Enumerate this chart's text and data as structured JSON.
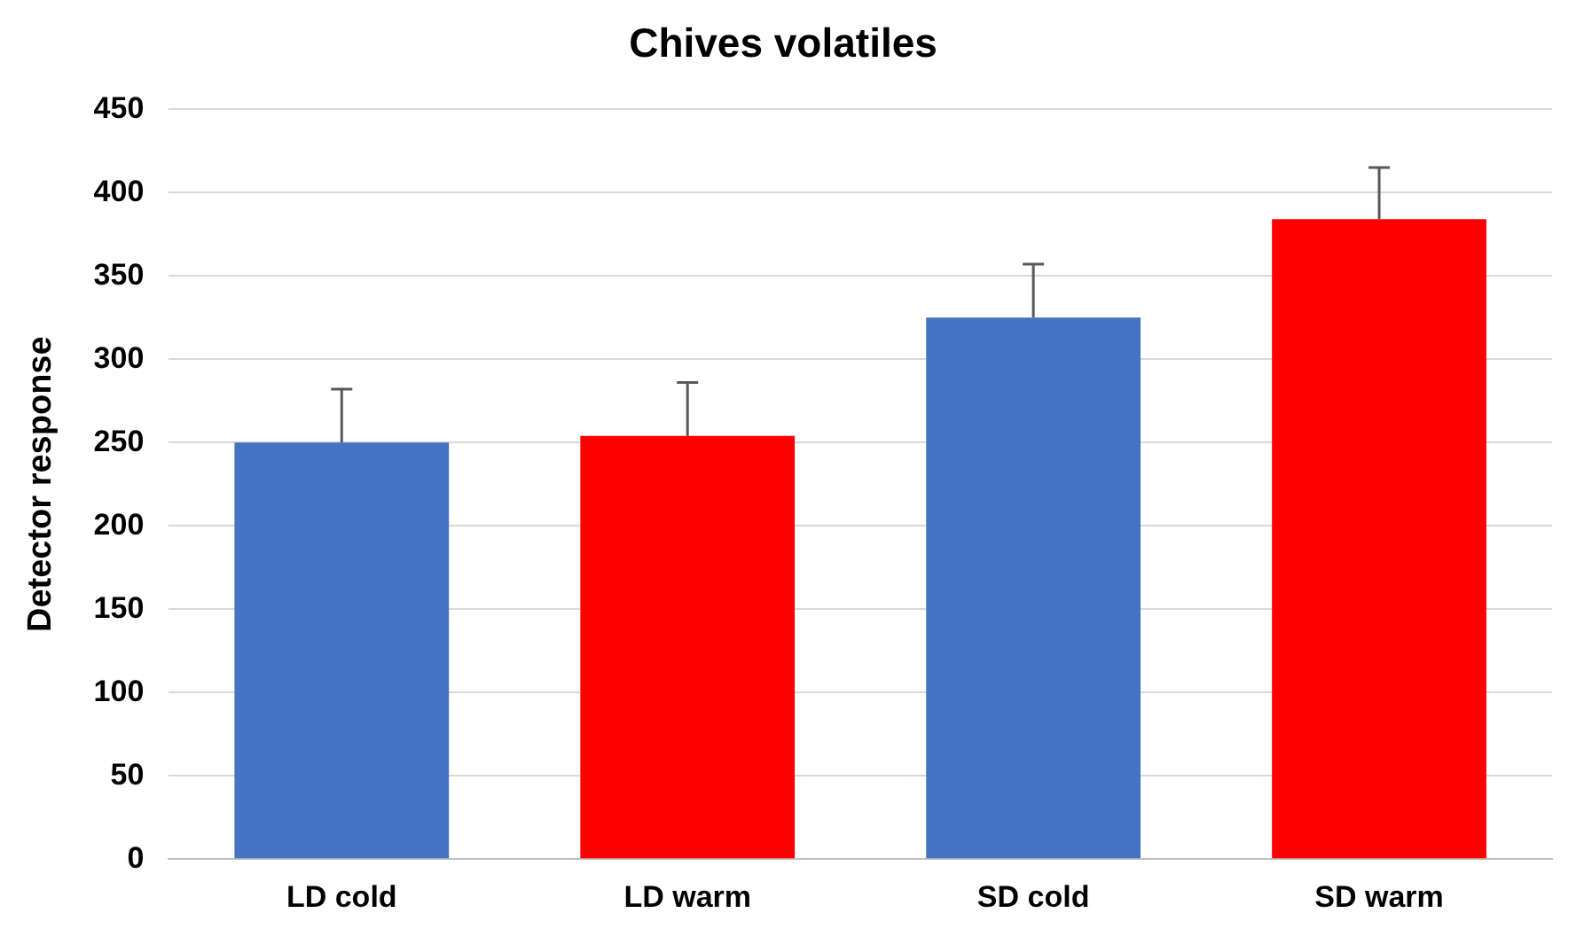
{
  "chart_data": {
    "type": "bar",
    "title": "Chives volatiles",
    "ylabel": "Detector response",
    "categories": [
      "LD cold",
      "LD warm",
      "SD cold",
      "SD warm"
    ],
    "values": [
      250,
      254,
      325,
      384
    ],
    "colors": [
      "#4472c4",
      "#ff0000",
      "#4472c4",
      "#ff0000"
    ],
    "errors": [
      [
        250,
        282
      ],
      [
        254,
        286
      ],
      [
        325,
        357
      ],
      [
        384,
        415
      ]
    ],
    "ylim": [
      0,
      450
    ],
    "yticks": [
      0,
      50,
      100,
      150,
      200,
      250,
      300,
      350,
      400,
      450
    ],
    "grid": "y",
    "legend": false
  }
}
